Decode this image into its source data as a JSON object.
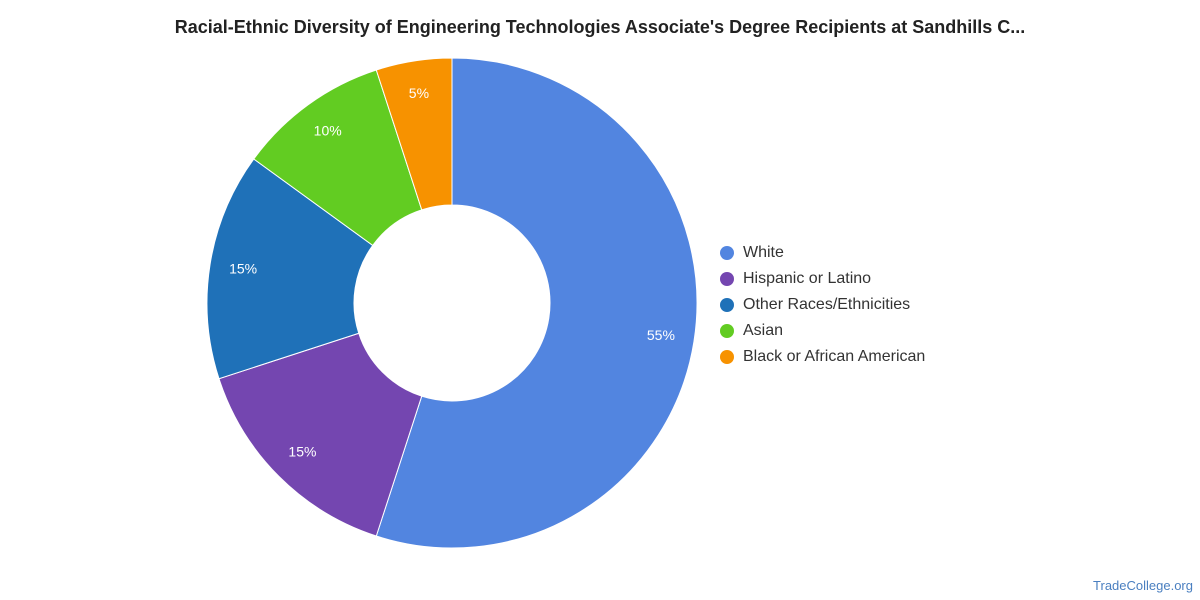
{
  "chart_data": {
    "type": "pie",
    "title": "Racial-Ethnic Diversity of Engineering Technologies Associate's Degree Recipients at Sandhills C...",
    "categories": [
      "White",
      "Hispanic or Latino",
      "Other Races/Ethnicities",
      "Asian",
      "Black or African American"
    ],
    "values": [
      55,
      15,
      15,
      10,
      5
    ],
    "value_labels": [
      "55%",
      "15%",
      "15%",
      "10%",
      "5%"
    ],
    "colors": [
      "#5285e0",
      "#7446b0",
      "#1f71b8",
      "#62cc22",
      "#f79200"
    ],
    "donut": true,
    "legend_placement": "right"
  },
  "credit": "TradeCollege.org"
}
